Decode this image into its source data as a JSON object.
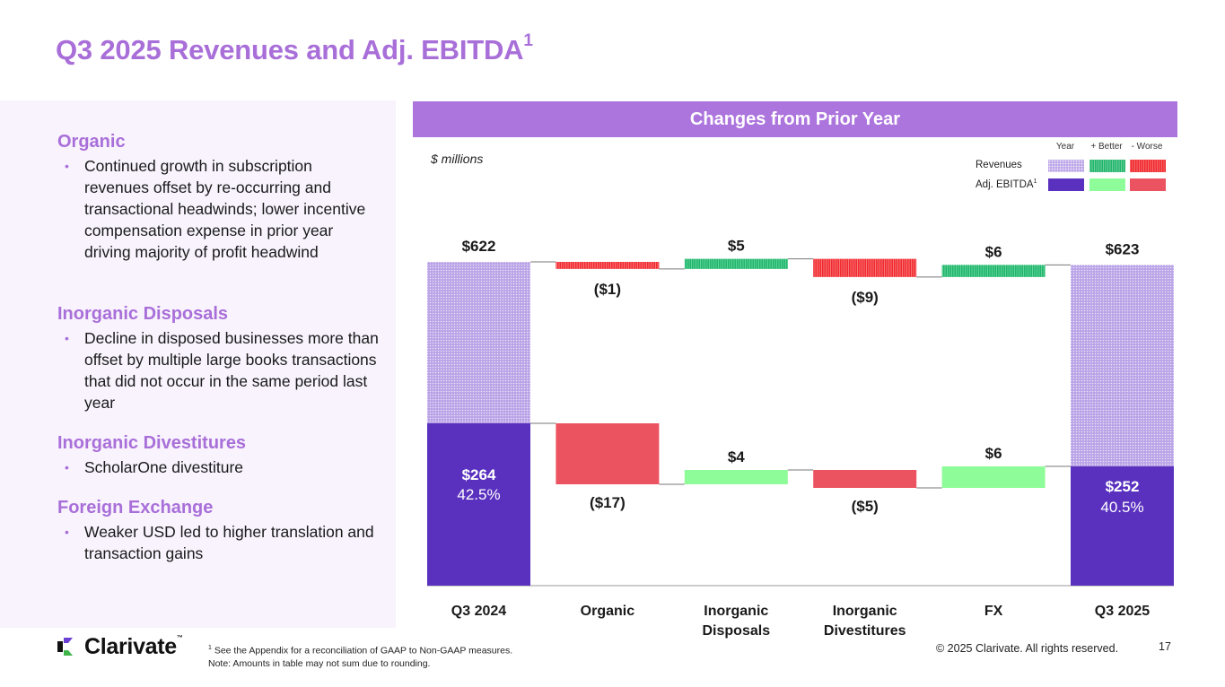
{
  "title": {
    "text": "Q3 2025 Revenues and Adj. EBITDA",
    "superscript": "1"
  },
  "left_panel": {
    "sections": [
      {
        "heading": "Organic",
        "bullets": [
          "Continued growth in subscription revenues offset by re-occurring and transactional headwinds; lower incentive compensation expense in prior year driving majority of profit headwind"
        ]
      },
      {
        "heading": "Inorganic Disposals",
        "bullets": [
          "Decline in disposed businesses more than offset by multiple large books transactions that did not occur in the same period last year"
        ]
      },
      {
        "heading": "Inorganic Divestitures",
        "bullets": [
          "ScholarOne divestiture"
        ]
      },
      {
        "heading": "Foreign Exchange",
        "bullets": [
          "Weaker USD led to higher translation and transaction gains"
        ]
      }
    ]
  },
  "chart_header": "Changes from Prior Year",
  "units_label": "$ millions",
  "legend": {
    "columns": [
      "Year",
      "+ Better",
      "- Worse"
    ],
    "rows": [
      {
        "label": "Revenues",
        "superscript": ""
      },
      {
        "label": "Adj. EBITDA",
        "superscript": "1"
      }
    ]
  },
  "colors": {
    "title_purple": "#a96fd9",
    "header_purple": "#ac74dd",
    "year_revenue_pattern": "#b9a2e6",
    "year_ebitda": "#5a31bf",
    "better_revenue": "#21b56b",
    "worse_revenue": "#f12b2f",
    "better_ebitda": "#8efc98",
    "worse_ebitda": "#ec5360"
  },
  "chart_data": {
    "type": "waterfall",
    "title": "Changes from Prior Year",
    "ylabel": "$ millions",
    "categories": [
      "Q3 2024",
      "Organic",
      "Inorganic\nDisposals",
      "Inorganic\nDivestitures",
      "FX",
      "Q3 2025"
    ],
    "series": [
      {
        "name": "Revenues",
        "start": 622,
        "changes": [
          -1,
          5,
          -9,
          6
        ],
        "end": 623,
        "labels": [
          "$622",
          "($1)",
          "$5",
          "($9)",
          "$6",
          "$623"
        ]
      },
      {
        "name": "Adj. EBITDA",
        "start": 264,
        "changes": [
          -17,
          4,
          -5,
          6
        ],
        "end": 252,
        "labels": [
          "$264",
          "($17)",
          "$4",
          "($5)",
          "$6",
          "$252"
        ],
        "margins": [
          "42.5%",
          "",
          "",
          "",
          "",
          "40.5%"
        ]
      }
    ]
  },
  "footer": {
    "logo_text": "Clarivate",
    "logo_tm": "™",
    "footnote_sup": "1",
    "footnote_line1": " See the Appendix for a reconciliation of GAAP to Non-GAAP measures.",
    "footnote_line2": "Note: Amounts in table may not sum due to rounding.",
    "copyright": "© 2025 Clarivate. All rights reserved.",
    "page_number": "17"
  }
}
